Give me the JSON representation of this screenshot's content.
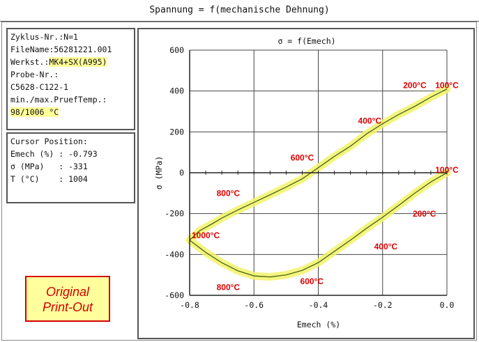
{
  "window_title": "Spannung = f(mechanische Dehnung)",
  "info_panel": {
    "zyklus": "Zyklus-Nr.:N=1",
    "filename": "FileName:56281221.001",
    "werkst_label": "Werkst.:",
    "werkst_value": "MK4+SX(A995)",
    "probe_label": "Probe-Nr.:",
    "probe_value": "C5628-C122-1",
    "temp_label": "min./max.PruefTemp.:",
    "temp_value": "98/1006 °C"
  },
  "cursor_panel": {
    "title": "Cursor Position:",
    "strain": "Emech (%) : -0.793",
    "stress": "σ (MPa)   : -331",
    "temp": "T (°C)    : 1004"
  },
  "print_label": {
    "line1": "Original",
    "line2": "Print-Out"
  },
  "chart_data": {
    "type": "line",
    "title": "σ = f(Emech)",
    "xlabel": "Emech (%)",
    "ylabel": "σ (MPa)",
    "xlim": [
      -0.8,
      0.0
    ],
    "ylim": [
      -600,
      600
    ],
    "xticks": [
      "-0.8",
      "-0.6",
      "-0.4",
      "-0.2",
      "0.0"
    ],
    "yticks": [
      "600",
      "400",
      "200",
      "0",
      "-200",
      "-400",
      "-600"
    ],
    "grid": true,
    "series": [
      {
        "x": [
          0.0,
          -0.05,
          -0.1,
          -0.15,
          -0.2,
          -0.25,
          -0.3,
          -0.35,
          -0.4,
          -0.45,
          -0.5,
          -0.55,
          -0.6,
          -0.65,
          -0.7,
          -0.75,
          -0.8,
          -0.77,
          -0.73,
          -0.7,
          -0.65,
          -0.6,
          -0.55,
          -0.5,
          -0.45,
          -0.4,
          -0.35,
          -0.3,
          -0.25,
          -0.2,
          -0.15,
          -0.1,
          -0.05,
          0.0
        ],
        "y": [
          0,
          -45,
          -100,
          -160,
          -218,
          -272,
          -330,
          -385,
          -440,
          -478,
          -500,
          -510,
          -505,
          -480,
          -440,
          -390,
          -330,
          -285,
          -250,
          -222,
          -182,
          -145,
          -108,
          -70,
          -30,
          25,
          80,
          130,
          190,
          240,
          285,
          325,
          370,
          410
        ]
      }
    ],
    "annotations": [
      {
        "text": "200°C",
        "x": -0.1,
        "y": 415
      },
      {
        "text": "100°C",
        "x": 0.0,
        "y": 415
      },
      {
        "text": "400°C",
        "x": -0.24,
        "y": 240
      },
      {
        "text": "600°C",
        "x": -0.45,
        "y": 60
      },
      {
        "text": "100°C",
        "x": 0.0,
        "y": 0
      },
      {
        "text": "800°C",
        "x": -0.68,
        "y": -115
      },
      {
        "text": "200°C",
        "x": -0.07,
        "y": -215
      },
      {
        "text": "1000°C",
        "x": -0.75,
        "y": -320
      },
      {
        "text": "400°C",
        "x": -0.19,
        "y": -375
      },
      {
        "text": "600°C",
        "x": -0.42,
        "y": -545
      },
      {
        "text": "800°C",
        "x": -0.68,
        "y": -575
      }
    ]
  }
}
